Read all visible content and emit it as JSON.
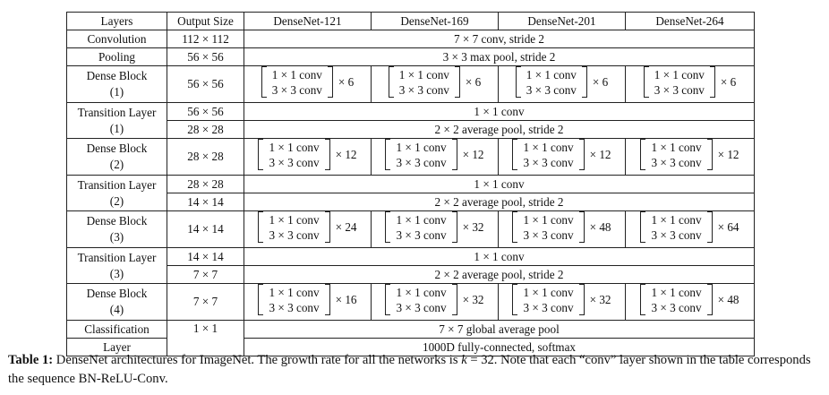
{
  "table": {
    "headers": [
      "Layers",
      "Output Size",
      "DenseNet-121",
      "DenseNet-169",
      "DenseNet-201",
      "DenseNet-264"
    ],
    "conv1x1": "1 × 1 conv",
    "conv3x3": "3 × 3 conv",
    "rows": {
      "convolution": {
        "layer": "Convolution",
        "size": "112 × 112",
        "spec": "7 × 7 conv, stride 2"
      },
      "pooling": {
        "layer": "Pooling",
        "size": "56 × 56",
        "spec": "3 × 3 max pool, stride 2"
      },
      "dense1": {
        "layer_a": "Dense Block",
        "layer_b": "(1)",
        "size": "56 × 56",
        "mult": [
          "× 6",
          "× 6",
          "× 6",
          "× 6"
        ]
      },
      "trans1": {
        "layer_a": "Transition Layer",
        "layer_b": "(1)",
        "size_a": "56 × 56",
        "size_b": "28 × 28",
        "spec_a": "1 × 1 conv",
        "spec_b": "2 × 2 average pool, stride 2"
      },
      "dense2": {
        "layer_a": "Dense Block",
        "layer_b": "(2)",
        "size": "28 × 28",
        "mult": [
          "× 12",
          "× 12",
          "× 12",
          "× 12"
        ]
      },
      "trans2": {
        "layer_a": "Transition Layer",
        "layer_b": "(2)",
        "size_a": "28 × 28",
        "size_b": "14 × 14",
        "spec_a": "1 × 1 conv",
        "spec_b": "2 × 2 average pool, stride 2"
      },
      "dense3": {
        "layer_a": "Dense Block",
        "layer_b": "(3)",
        "size": "14 × 14",
        "mult": [
          "× 24",
          "× 32",
          "× 48",
          "× 64"
        ]
      },
      "trans3": {
        "layer_a": "Transition Layer",
        "layer_b": "(3)",
        "size_a": "14 × 14",
        "size_b": "7 × 7",
        "spec_a": "1 × 1 conv",
        "spec_b": "2 × 2 average pool, stride 2"
      },
      "dense4": {
        "layer_a": "Dense Block",
        "layer_b": "(4)",
        "size": "7 × 7",
        "mult": [
          "× 16",
          "× 32",
          "× 32",
          "× 48"
        ]
      },
      "classification": {
        "layer_a": "Classification",
        "layer_b": "Layer",
        "size": "1 × 1",
        "spec_a": "7 × 7 global average pool",
        "spec_b": "1000D fully-connected, softmax"
      }
    }
  },
  "caption": {
    "label": "Table 1:",
    "text_before_k": " DenseNet architectures for ImageNet. The growth rate for all the networks is ",
    "k_symbol": "k",
    "text_after_k": " = 32. Note that each “conv” layer shown in the table corresponds the sequence BN-ReLU-Conv."
  }
}
